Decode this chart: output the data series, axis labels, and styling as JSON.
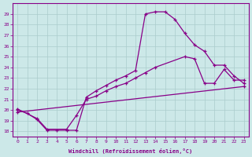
{
  "xlabel": "Windchill (Refroidissement éolien,°C)",
  "bg_color": "#cce8e8",
  "grid_color": "#aacccc",
  "line_color": "#880088",
  "line1_x": [
    0,
    1,
    2,
    3,
    4,
    5,
    6,
    7,
    8,
    9,
    10,
    11,
    12,
    13,
    14,
    15,
    16,
    17,
    18,
    19,
    20,
    21,
    22,
    23
  ],
  "line1_y": [
    20.0,
    19.7,
    19.1,
    18.1,
    18.1,
    18.1,
    18.1,
    21.2,
    21.8,
    22.3,
    22.8,
    23.2,
    23.7,
    29.0,
    29.2,
    29.2,
    28.5,
    27.2,
    26.1,
    25.5,
    24.2,
    24.2,
    23.2,
    22.5
  ],
  "line2_x": [
    0,
    2,
    3,
    5,
    6,
    7,
    8,
    9,
    10,
    11,
    12,
    13,
    14,
    17,
    18,
    19,
    20,
    21,
    22,
    23
  ],
  "line2_y": [
    20.1,
    19.2,
    18.2,
    18.2,
    19.5,
    21.0,
    21.3,
    21.8,
    22.2,
    22.5,
    23.0,
    23.5,
    24.0,
    25.0,
    24.8,
    22.5,
    22.5,
    23.8,
    22.8,
    22.8
  ],
  "line3_x": [
    0,
    23
  ],
  "line3_y": [
    19.8,
    22.2
  ],
  "xlim": [
    -0.5,
    23.5
  ],
  "ylim": [
    17.5,
    30.0
  ],
  "xtick_labels": [
    "0",
    "1",
    "2",
    "3",
    "4",
    "5",
    "6",
    "7",
    "8",
    "9",
    "10",
    "11",
    "12",
    "13",
    "14",
    "15",
    "16",
    "17",
    "18",
    "19",
    "20",
    "21",
    "22",
    "23"
  ],
  "ytick_labels": [
    "18",
    "19",
    "20",
    "21",
    "22",
    "23",
    "24",
    "25",
    "26",
    "27",
    "28",
    "29"
  ]
}
